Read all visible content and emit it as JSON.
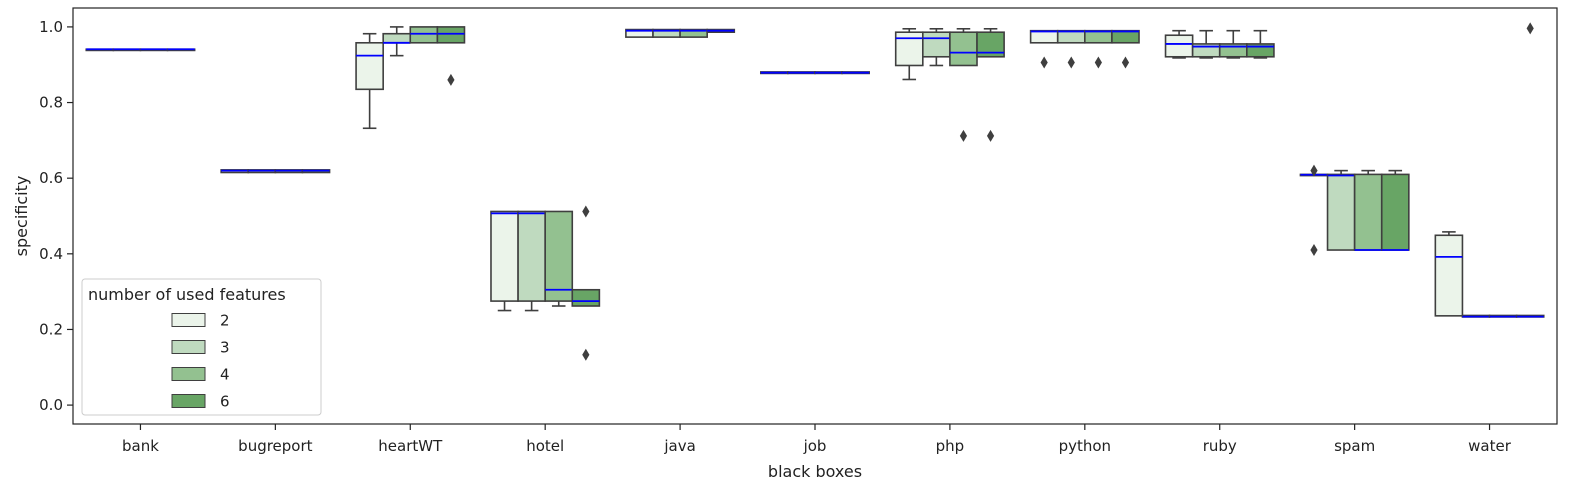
{
  "chart_data": {
    "type": "box",
    "xlabel": "black boxes",
    "ylabel": "specificity",
    "ylim": [
      -0.05,
      1.05
    ],
    "yticks": [
      "0.0",
      "0.2",
      "0.4",
      "0.6",
      "0.8",
      "1.0"
    ],
    "grid": false,
    "legend": {
      "title": "number of used features",
      "placement": "lower-left",
      "entries": [
        {
          "label": "2",
          "color": "#ebf4ea"
        },
        {
          "label": "3",
          "color": "#bfdabf"
        },
        {
          "label": "4",
          "color": "#93c190"
        },
        {
          "label": "6",
          "color": "#68a565"
        }
      ]
    },
    "colors": {
      "median": "#0000ff",
      "edge": "#3f3f3f"
    },
    "categories": [
      "bank",
      "bugreport",
      "heartWT",
      "hotel",
      "java",
      "job",
      "php",
      "python",
      "ruby",
      "spam",
      "water"
    ],
    "boxes": [
      [
        {
          "q1": 0.941,
          "med": 0.941,
          "q3": 0.941,
          "wlo": 0.941,
          "whi": 0.941,
          "fl": []
        },
        {
          "q1": 0.941,
          "med": 0.941,
          "q3": 0.941,
          "wlo": 0.941,
          "whi": 0.941,
          "fl": []
        },
        {
          "q1": 0.941,
          "med": 0.941,
          "q3": 0.941,
          "wlo": 0.941,
          "whi": 0.941,
          "fl": []
        },
        {
          "q1": 0.941,
          "med": 0.941,
          "q3": 0.941,
          "wlo": 0.941,
          "whi": 0.941,
          "fl": []
        }
      ],
      [
        {
          "q1": 0.615,
          "med": 0.62,
          "q3": 0.622,
          "wlo": 0.615,
          "whi": 0.622,
          "fl": []
        },
        {
          "q1": 0.615,
          "med": 0.62,
          "q3": 0.622,
          "wlo": 0.615,
          "whi": 0.622,
          "fl": []
        },
        {
          "q1": 0.615,
          "med": 0.62,
          "q3": 0.622,
          "wlo": 0.615,
          "whi": 0.622,
          "fl": []
        },
        {
          "q1": 0.615,
          "med": 0.62,
          "q3": 0.622,
          "wlo": 0.615,
          "whi": 0.622,
          "fl": []
        }
      ],
      [
        {
          "q1": 0.835,
          "med": 0.924,
          "q3": 0.958,
          "wlo": 0.732,
          "whi": 0.982,
          "fl": []
        },
        {
          "q1": 0.958,
          "med": 0.958,
          "q3": 0.982,
          "wlo": 0.924,
          "whi": 1.0,
          "fl": []
        },
        {
          "q1": 0.958,
          "med": 0.982,
          "q3": 1.0,
          "wlo": 0.958,
          "whi": 1.0,
          "fl": []
        },
        {
          "q1": 0.958,
          "med": 0.982,
          "q3": 1.0,
          "wlo": 0.958,
          "whi": 1.0,
          "fl": [
            0.86
          ]
        }
      ],
      [
        {
          "q1": 0.275,
          "med": 0.507,
          "q3": 0.512,
          "wlo": 0.25,
          "whi": 0.512,
          "fl": []
        },
        {
          "q1": 0.275,
          "med": 0.507,
          "q3": 0.512,
          "wlo": 0.25,
          "whi": 0.512,
          "fl": []
        },
        {
          "q1": 0.275,
          "med": 0.305,
          "q3": 0.512,
          "wlo": 0.262,
          "whi": 0.512,
          "fl": []
        },
        {
          "q1": 0.262,
          "med": 0.275,
          "q3": 0.305,
          "wlo": 0.262,
          "whi": 0.305,
          "fl": [
            0.512,
            0.133
          ]
        }
      ],
      [
        {
          "q1": 0.973,
          "med": 0.99,
          "q3": 0.993,
          "wlo": 0.973,
          "whi": 0.993,
          "fl": []
        },
        {
          "q1": 0.973,
          "med": 0.99,
          "q3": 0.993,
          "wlo": 0.973,
          "whi": 0.993,
          "fl": []
        },
        {
          "q1": 0.973,
          "med": 0.99,
          "q3": 0.993,
          "wlo": 0.973,
          "whi": 0.993,
          "fl": []
        },
        {
          "q1": 0.986,
          "med": 0.99,
          "q3": 0.993,
          "wlo": 0.986,
          "whi": 0.993,
          "fl": []
        }
      ],
      [
        {
          "q1": 0.877,
          "med": 0.879,
          "q3": 0.881,
          "wlo": 0.877,
          "whi": 0.881,
          "fl": []
        },
        {
          "q1": 0.877,
          "med": 0.879,
          "q3": 0.881,
          "wlo": 0.877,
          "whi": 0.881,
          "fl": []
        },
        {
          "q1": 0.877,
          "med": 0.879,
          "q3": 0.881,
          "wlo": 0.877,
          "whi": 0.881,
          "fl": []
        },
        {
          "q1": 0.877,
          "med": 0.879,
          "q3": 0.881,
          "wlo": 0.877,
          "whi": 0.881,
          "fl": []
        }
      ],
      [
        {
          "q1": 0.898,
          "med": 0.97,
          "q3": 0.986,
          "wlo": 0.861,
          "whi": 0.995,
          "fl": []
        },
        {
          "q1": 0.921,
          "med": 0.97,
          "q3": 0.986,
          "wlo": 0.898,
          "whi": 0.995,
          "fl": []
        },
        {
          "q1": 0.898,
          "med": 0.932,
          "q3": 0.986,
          "wlo": 0.898,
          "whi": 0.995,
          "fl": [
            0.712
          ]
        },
        {
          "q1": 0.921,
          "med": 0.932,
          "q3": 0.986,
          "wlo": 0.921,
          "whi": 0.995,
          "fl": [
            0.712
          ]
        }
      ],
      [
        {
          "q1": 0.958,
          "med": 0.988,
          "q3": 0.99,
          "wlo": 0.958,
          "whi": 0.99,
          "fl": [
            0.906
          ]
        },
        {
          "q1": 0.958,
          "med": 0.988,
          "q3": 0.99,
          "wlo": 0.958,
          "whi": 0.99,
          "fl": [
            0.906
          ]
        },
        {
          "q1": 0.958,
          "med": 0.988,
          "q3": 0.99,
          "wlo": 0.958,
          "whi": 0.99,
          "fl": [
            0.906
          ]
        },
        {
          "q1": 0.958,
          "med": 0.988,
          "q3": 0.99,
          "wlo": 0.958,
          "whi": 0.99,
          "fl": [
            0.906
          ]
        }
      ],
      [
        {
          "q1": 0.921,
          "med": 0.955,
          "q3": 0.978,
          "wlo": 0.918,
          "whi": 0.99,
          "fl": []
        },
        {
          "q1": 0.921,
          "med": 0.948,
          "q3": 0.955,
          "wlo": 0.918,
          "whi": 0.99,
          "fl": []
        },
        {
          "q1": 0.921,
          "med": 0.948,
          "q3": 0.955,
          "wlo": 0.918,
          "whi": 0.99,
          "fl": []
        },
        {
          "q1": 0.921,
          "med": 0.948,
          "q3": 0.955,
          "wlo": 0.918,
          "whi": 0.99,
          "fl": []
        }
      ],
      [
        {
          "q1": 0.607,
          "med": 0.609,
          "q3": 0.61,
          "wlo": 0.607,
          "whi": 0.61,
          "fl": [
            0.62,
            0.41
          ]
        },
        {
          "q1": 0.41,
          "med": 0.607,
          "q3": 0.61,
          "wlo": 0.41,
          "whi": 0.62,
          "fl": []
        },
        {
          "q1": 0.41,
          "med": 0.41,
          "q3": 0.61,
          "wlo": 0.41,
          "whi": 0.62,
          "fl": []
        },
        {
          "q1": 0.41,
          "med": 0.41,
          "q3": 0.61,
          "wlo": 0.41,
          "whi": 0.62,
          "fl": []
        }
      ],
      [
        {
          "q1": 0.236,
          "med": 0.392,
          "q3": 0.449,
          "wlo": 0.236,
          "whi": 0.458,
          "fl": []
        },
        {
          "q1": 0.233,
          "med": 0.234,
          "q3": 0.237,
          "wlo": 0.233,
          "whi": 0.237,
          "fl": []
        },
        {
          "q1": 0.233,
          "med": 0.234,
          "q3": 0.237,
          "wlo": 0.233,
          "whi": 0.237,
          "fl": []
        },
        {
          "q1": 0.233,
          "med": 0.234,
          "q3": 0.237,
          "wlo": 0.233,
          "whi": 0.237,
          "fl": [
            0.996
          ]
        }
      ]
    ]
  }
}
